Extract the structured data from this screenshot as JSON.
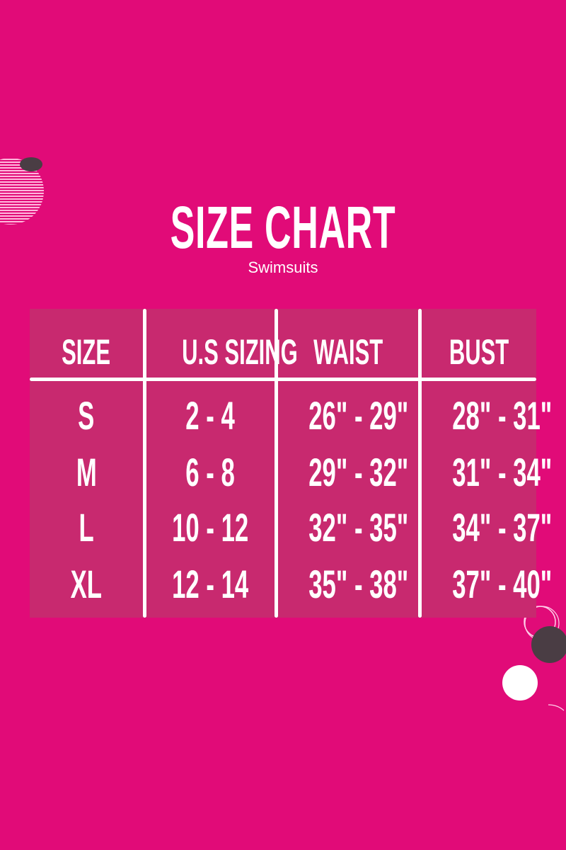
{
  "title": "SIZE CHART",
  "subtitle": "Swimsuits",
  "colors": {
    "background": "#e10b78",
    "table": "#c8296f",
    "text": "#ffffff",
    "accent_dark": "#4a3d44"
  },
  "table": {
    "headers": [
      "SIZE",
      "U.S SIZING",
      "WAIST",
      "BUST"
    ],
    "rows": [
      [
        "S",
        "2 - 4",
        "26\" - 29\"",
        "28\" - 31\""
      ],
      [
        "M",
        "6 - 8",
        "29\" - 32\"",
        "31\" - 34\""
      ],
      [
        "L",
        "10 - 12",
        "32\" - 35\"",
        "34\" - 37\""
      ],
      [
        "XL",
        "12 - 14",
        "35\" - 38\"",
        "37\" - 40\""
      ]
    ]
  }
}
